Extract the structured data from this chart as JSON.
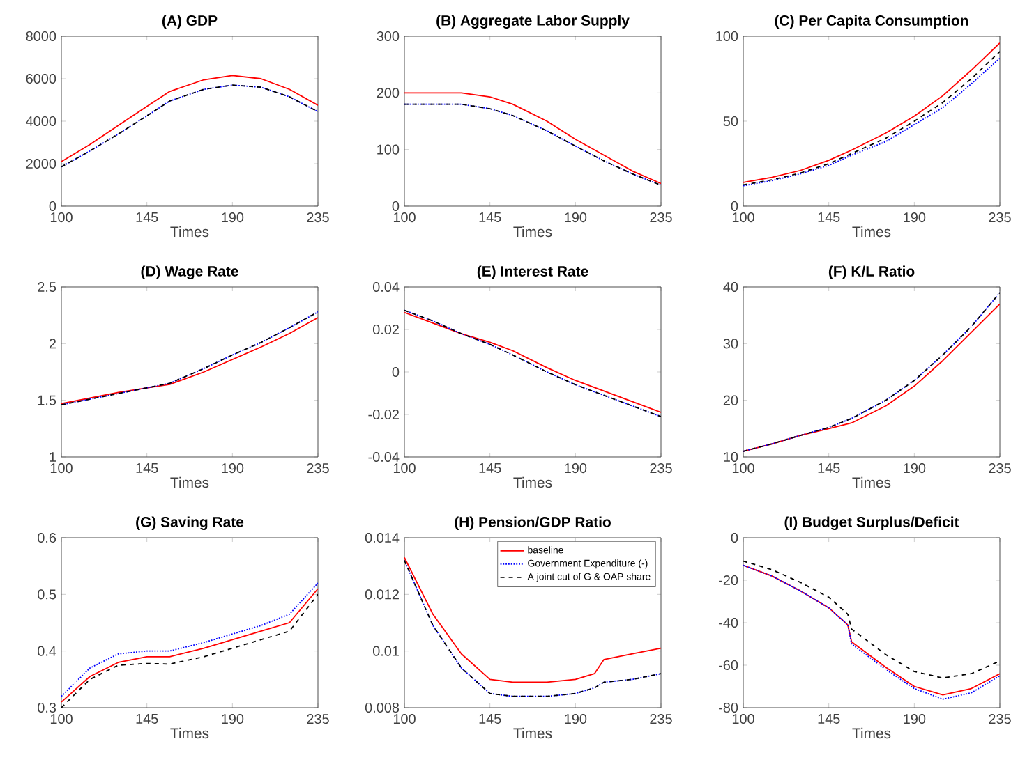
{
  "chart_data": [
    {
      "type": "line",
      "title": "(A) GDP",
      "xlabel": "Times",
      "xlim": [
        100,
        235
      ],
      "xticks": [
        100,
        145,
        190,
        235
      ],
      "ylim": [
        0,
        8000
      ],
      "yticks": [
        0,
        2000,
        4000,
        6000,
        8000
      ],
      "x": [
        100,
        115,
        130,
        145,
        157,
        175,
        190,
        205,
        220,
        235
      ],
      "series": [
        {
          "color": "#ff0000",
          "line_style": "solid",
          "values": [
            2100,
            2900,
            3800,
            4700,
            5400,
            5950,
            6150,
            6000,
            5500,
            4750
          ]
        },
        {
          "color": "#0000ff",
          "line_style": "dotted",
          "values": [
            1850,
            2600,
            3400,
            4250,
            4950,
            5500,
            5700,
            5600,
            5150,
            4450
          ]
        },
        {
          "color": "#000000",
          "line_style": "dashed",
          "values": [
            1850,
            2600,
            3400,
            4250,
            4950,
            5500,
            5700,
            5600,
            5150,
            4450
          ]
        }
      ]
    },
    {
      "type": "line",
      "title": "(B) Aggregate Labor Supply",
      "xlabel": "Times",
      "xlim": [
        100,
        235
      ],
      "xticks": [
        100,
        145,
        190,
        235
      ],
      "ylim": [
        0,
        300
      ],
      "yticks": [
        0,
        100,
        200,
        300
      ],
      "x": [
        100,
        115,
        130,
        145,
        157,
        175,
        190,
        205,
        220,
        235
      ],
      "series": [
        {
          "color": "#ff0000",
          "line_style": "solid",
          "values": [
            200,
            200,
            200,
            193,
            180,
            150,
            118,
            90,
            62,
            40
          ]
        },
        {
          "color": "#0000ff",
          "line_style": "dotted",
          "values": [
            180,
            180,
            180,
            172,
            160,
            133,
            106,
            80,
            57,
            37
          ]
        },
        {
          "color": "#000000",
          "line_style": "dashed",
          "values": [
            180,
            180,
            180,
            172,
            160,
            133,
            106,
            80,
            57,
            37
          ]
        }
      ]
    },
    {
      "type": "line",
      "title": "(C) Per Capita Consumption",
      "xlabel": "Times",
      "xlim": [
        100,
        235
      ],
      "xticks": [
        100,
        145,
        190,
        235
      ],
      "ylim": [
        0,
        100
      ],
      "yticks": [
        0,
        50,
        100
      ],
      "x": [
        100,
        115,
        130,
        145,
        157,
        175,
        190,
        205,
        220,
        235
      ],
      "series": [
        {
          "color": "#ff0000",
          "line_style": "solid",
          "values": [
            14,
            17,
            21,
            27,
            33,
            43,
            53,
            65,
            80,
            96
          ]
        },
        {
          "color": "#0000ff",
          "line_style": "dotted",
          "values": [
            12,
            15,
            19,
            24,
            30,
            38,
            48,
            58,
            72,
            87
          ]
        },
        {
          "color": "#000000",
          "line_style": "dashed",
          "values": [
            12.5,
            15.5,
            19.5,
            25,
            31,
            40,
            50,
            61,
            75,
            91
          ]
        }
      ]
    },
    {
      "type": "line",
      "title": "(D) Wage Rate",
      "xlabel": "Times",
      "xlim": [
        100,
        235
      ],
      "xticks": [
        100,
        145,
        190,
        235
      ],
      "ylim": [
        1,
        2.5
      ],
      "yticks": [
        1,
        1.5,
        2,
        2.5
      ],
      "x": [
        100,
        115,
        130,
        145,
        157,
        175,
        190,
        205,
        220,
        235
      ],
      "series": [
        {
          "color": "#ff0000",
          "line_style": "solid",
          "values": [
            1.47,
            1.52,
            1.57,
            1.61,
            1.64,
            1.75,
            1.86,
            1.97,
            2.09,
            2.23
          ]
        },
        {
          "color": "#0000ff",
          "line_style": "dotted",
          "values": [
            1.46,
            1.51,
            1.56,
            1.61,
            1.65,
            1.78,
            1.9,
            2.01,
            2.14,
            2.28
          ]
        },
        {
          "color": "#000000",
          "line_style": "dashed",
          "values": [
            1.46,
            1.51,
            1.56,
            1.61,
            1.65,
            1.78,
            1.9,
            2.01,
            2.14,
            2.28
          ]
        }
      ]
    },
    {
      "type": "line",
      "title": "(E) Interest Rate",
      "xlabel": "Times",
      "xlim": [
        100,
        235
      ],
      "xticks": [
        100,
        145,
        190,
        235
      ],
      "ylim": [
        -0.04,
        0.04
      ],
      "yticks": [
        -0.04,
        -0.02,
        0,
        0.02,
        0.04
      ],
      "x": [
        100,
        115,
        130,
        145,
        157,
        175,
        190,
        205,
        220,
        235
      ],
      "series": [
        {
          "color": "#ff0000",
          "line_style": "solid",
          "values": [
            0.028,
            0.023,
            0.018,
            0.014,
            0.01,
            0.002,
            -0.004,
            -0.009,
            -0.014,
            -0.019
          ]
        },
        {
          "color": "#0000ff",
          "line_style": "dotted",
          "values": [
            0.029,
            0.024,
            0.018,
            0.013,
            0.008,
            0.0,
            -0.006,
            -0.011,
            -0.016,
            -0.021
          ]
        },
        {
          "color": "#000000",
          "line_style": "dashed",
          "values": [
            0.029,
            0.024,
            0.018,
            0.013,
            0.008,
            0.0,
            -0.006,
            -0.011,
            -0.016,
            -0.021
          ]
        }
      ]
    },
    {
      "type": "line",
      "title": "(F) K/L Ratio",
      "xlabel": "Times",
      "xlim": [
        100,
        235
      ],
      "xticks": [
        100,
        145,
        190,
        235
      ],
      "ylim": [
        10,
        40
      ],
      "yticks": [
        10,
        20,
        30,
        40
      ],
      "x": [
        100,
        115,
        130,
        145,
        157,
        175,
        190,
        205,
        220,
        235
      ],
      "series": [
        {
          "color": "#ff0000",
          "line_style": "solid",
          "values": [
            11,
            12.3,
            13.8,
            15,
            16,
            19,
            22.5,
            27,
            32,
            37
          ]
        },
        {
          "color": "#0000ff",
          "line_style": "dotted",
          "values": [
            11,
            12.3,
            13.8,
            15.2,
            16.8,
            20,
            23.5,
            28,
            33,
            39
          ]
        },
        {
          "color": "#000000",
          "line_style": "dashed",
          "values": [
            11,
            12.3,
            13.8,
            15.2,
            16.8,
            20,
            23.5,
            28,
            33,
            39
          ]
        }
      ]
    },
    {
      "type": "line",
      "title": "(G) Saving Rate",
      "xlabel": "Times",
      "xlim": [
        100,
        235
      ],
      "xticks": [
        100,
        145,
        190,
        235
      ],
      "ylim": [
        0.3,
        0.6
      ],
      "yticks": [
        0.3,
        0.4,
        0.5,
        0.6
      ],
      "x": [
        100,
        115,
        130,
        145,
        157,
        175,
        190,
        205,
        220,
        235
      ],
      "series": [
        {
          "color": "#ff0000",
          "line_style": "solid",
          "values": [
            0.31,
            0.355,
            0.38,
            0.39,
            0.39,
            0.405,
            0.42,
            0.435,
            0.45,
            0.51
          ]
        },
        {
          "color": "#0000ff",
          "line_style": "dotted",
          "values": [
            0.32,
            0.37,
            0.395,
            0.4,
            0.4,
            0.415,
            0.43,
            0.445,
            0.465,
            0.52
          ]
        },
        {
          "color": "#000000",
          "line_style": "dashed",
          "values": [
            0.3,
            0.35,
            0.375,
            0.378,
            0.377,
            0.39,
            0.405,
            0.42,
            0.435,
            0.5
          ]
        }
      ]
    },
    {
      "type": "line",
      "title": "(H) Pension/GDP Ratio",
      "xlabel": "Times",
      "xlim": [
        100,
        235
      ],
      "xticks": [
        100,
        145,
        190,
        235
      ],
      "ylim": [
        0.008,
        0.014
      ],
      "yticks": [
        0.008,
        0.01,
        0.012,
        0.014
      ],
      "legend": "top right",
      "x": [
        100,
        115,
        130,
        145,
        157,
        175,
        190,
        200,
        205,
        220,
        235
      ],
      "series": [
        {
          "name": "baseline",
          "color": "#ff0000",
          "line_style": "solid",
          "values": [
            0.0133,
            0.0113,
            0.0099,
            0.009,
            0.0089,
            0.0089,
            0.009,
            0.0092,
            0.0097,
            0.0099,
            0.0101
          ]
        },
        {
          "name": "Government Expenditure (-)",
          "color": "#0000ff",
          "line_style": "dotted",
          "values": [
            0.0132,
            0.0109,
            0.0094,
            0.0085,
            0.0084,
            0.0084,
            0.0085,
            0.0087,
            0.0089,
            0.009,
            0.0092
          ]
        },
        {
          "name": "A joint cut of G & OAP share",
          "color": "#000000",
          "line_style": "dashed",
          "values": [
            0.0132,
            0.0109,
            0.0094,
            0.0085,
            0.0084,
            0.0084,
            0.0085,
            0.0087,
            0.0089,
            0.009,
            0.0092
          ]
        }
      ]
    },
    {
      "type": "line",
      "title": "(I) Budget Surplus/Deficit",
      "xlabel": "Times",
      "xlim": [
        100,
        235
      ],
      "xticks": [
        100,
        145,
        190,
        235
      ],
      "ylim": [
        -80,
        0
      ],
      "yticks": [
        -80,
        -60,
        -40,
        -20,
        0
      ],
      "x": [
        100,
        115,
        130,
        145,
        155,
        157,
        175,
        190,
        205,
        220,
        235
      ],
      "series": [
        {
          "color": "#ff0000",
          "line_style": "solid",
          "values": [
            -13,
            -18,
            -25,
            -33,
            -41,
            -49,
            -61,
            -70,
            -74,
            -71,
            -64
          ]
        },
        {
          "color": "#0000ff",
          "line_style": "dotted",
          "values": [
            -13,
            -18,
            -25,
            -33,
            -41,
            -50,
            -62,
            -71,
            -76,
            -73,
            -65
          ]
        },
        {
          "color": "#000000",
          "line_style": "dashed",
          "values": [
            -11,
            -15,
            -21,
            -28,
            -36,
            -43,
            -55,
            -63,
            -66,
            -64,
            -58
          ]
        }
      ]
    }
  ]
}
